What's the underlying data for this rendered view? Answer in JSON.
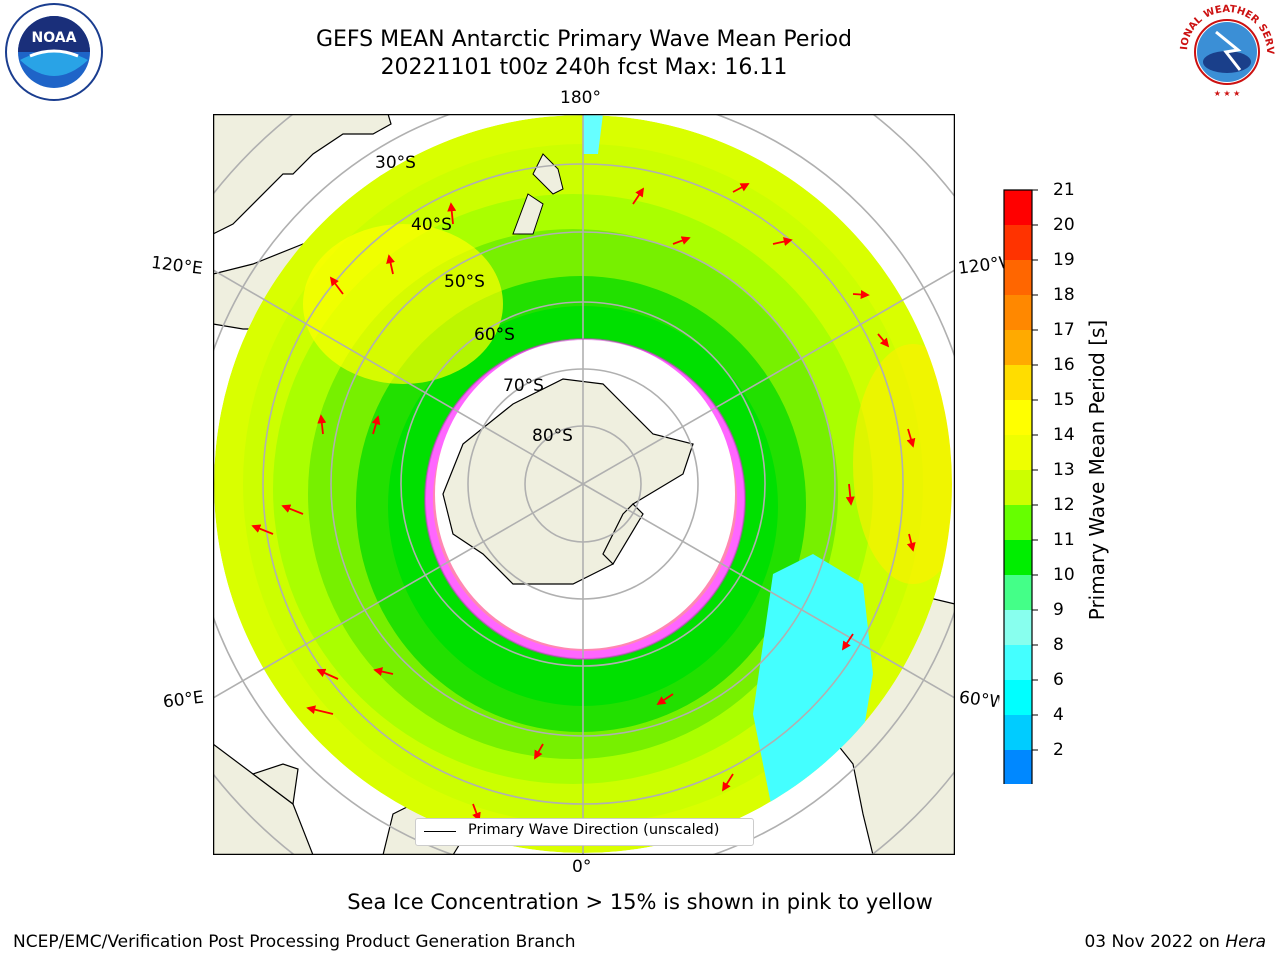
{
  "header": {
    "title_line1": "GEFS MEAN Antarctic Primary Wave Mean Period",
    "title_line2": "20221101 t00z 240h fcst   Max: 16.11"
  },
  "logos": {
    "left": "noaa-logo",
    "right": "nws-logo",
    "left_text": "NOAA",
    "right_text": "NATIONAL WEATHER SERVICE"
  },
  "map": {
    "projection": "south-polar-stereographic",
    "lon_labels": {
      "top": "180°",
      "bottom": "0°",
      "upper_left": "120°E",
      "lower_left": "60°E",
      "upper_right": "120°W",
      "lower_right": "60°W"
    },
    "lat_labels": [
      "30°S",
      "40°S",
      "50°S",
      "60°S",
      "70°S",
      "80°S"
    ],
    "land_color": "#efefdf",
    "graticule_color": "#b0b0b0",
    "arrow_color": "#ff0000"
  },
  "colorbar": {
    "title": "Primary Wave Mean Period [s]",
    "ticks": [
      "21",
      "20",
      "19",
      "18",
      "17",
      "16",
      "15",
      "14",
      "13",
      "12",
      "11",
      "10",
      "9",
      "8",
      "6",
      "4",
      "2"
    ],
    "colors": [
      "#ff0000",
      "#ff3300",
      "#ff6600",
      "#ff8800",
      "#ffaa00",
      "#ffdd00",
      "#ffff00",
      "#eeff00",
      "#ccff00",
      "#66ff00",
      "#00ee00",
      "#44ff88",
      "#88ffee",
      "#44ffff",
      "#00ffff",
      "#00ccff",
      "#0088ff"
    ],
    "extend_color": "#0000ee"
  },
  "legend": {
    "label": "Primary Wave Direction (unscaled)"
  },
  "note": "Sea Ice Concentration > 15% is shown in pink to yellow",
  "footer": {
    "left": "NCEP/EMC/Verification Post Processing Product Generation Branch",
    "right_date": "03 Nov 2022 on ",
    "right_host": "Hera"
  }
}
